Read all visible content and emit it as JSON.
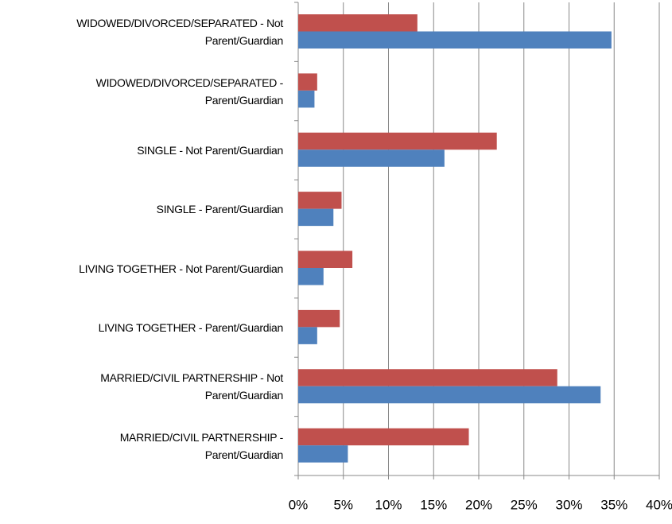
{
  "chart_data": {
    "type": "hbar",
    "categories": [
      "WIDOWED/DIVORCED/SEPARATED - Not\nParent/Guardian",
      "WIDOWED/DIVORCED/SEPARATED -\nParent/Guardian",
      "SINGLE - Not Parent/Guardian",
      "SINGLE - Parent/Guardian",
      "LIVING TOGETHER - Not Parent/Guardian",
      "LIVING TOGETHER - Parent/Guardian",
      "MARRIED/CIVIL PARTNERSHIP - Not\nParent/Guardian",
      "MARRIED/CIVIL PARTNERSHIP -\nParent/Guardian"
    ],
    "series": [
      {
        "color": "#c0504d",
        "values": [
          13.2,
          2.1,
          22.0,
          4.8,
          6.0,
          4.6,
          28.7,
          18.9
        ]
      },
      {
        "color": "#4f81bd",
        "values": [
          34.7,
          1.8,
          16.2,
          3.9,
          2.8,
          2.1,
          33.5,
          5.5
        ]
      }
    ],
    "xlim": [
      0,
      40
    ],
    "xticks": [
      {
        "value": 0,
        "label": "0%"
      },
      {
        "value": 5,
        "label": "5%"
      },
      {
        "value": 10,
        "label": "10%"
      },
      {
        "value": 15,
        "label": "15%"
      },
      {
        "value": 20,
        "label": "20%"
      },
      {
        "value": 25,
        "label": "25%"
      },
      {
        "value": 30,
        "label": "30%"
      },
      {
        "value": 35,
        "label": "35%"
      },
      {
        "value": 40,
        "label": "40%"
      }
    ],
    "grid": true
  }
}
